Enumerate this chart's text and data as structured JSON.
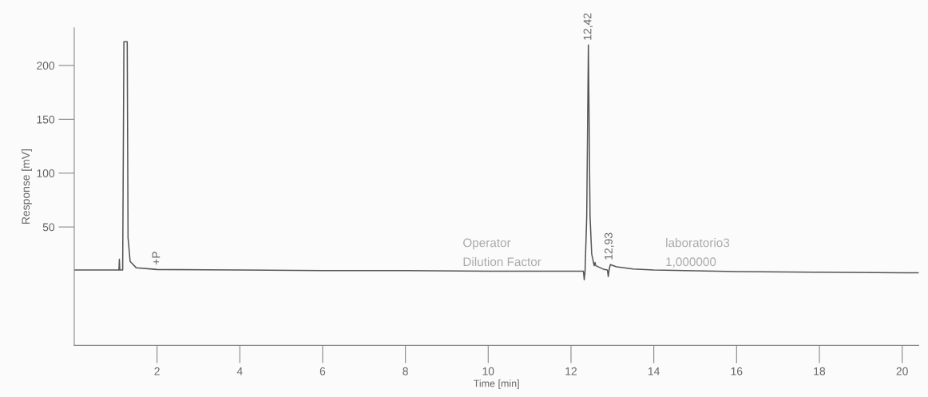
{
  "chart_data": {
    "type": "line",
    "xlabel": "Time [min]",
    "ylabel": "Response [mV]",
    "series": [
      {
        "color": "#555555",
        "x": [
          0,
          1.08,
          1.09,
          1.1,
          1.17,
          1.2,
          1.28,
          1.3,
          1.35,
          1.5,
          2,
          4,
          6,
          8,
          10,
          12,
          12.3,
          12.32,
          12.34,
          12.38,
          12.42,
          12.46,
          12.5,
          12.56,
          12.58,
          12.6,
          12.8,
          12.88,
          12.9,
          12.92,
          12.95,
          13.1,
          13.5,
          14,
          16,
          18,
          20,
          20.4
        ],
        "values": [
          10,
          10,
          20,
          10,
          10,
          222,
          222,
          40,
          18,
          12,
          10.5,
          10,
          9.5,
          9.5,
          9,
          9,
          9,
          1,
          9,
          60,
          219,
          60,
          25,
          14,
          17,
          14,
          10.5,
          10,
          4,
          10,
          15,
          13,
          11,
          10,
          8.5,
          8,
          7.5,
          7.5
        ]
      }
    ],
    "annotations": [
      {
        "text": "12,42",
        "x": 12.42,
        "y": 219
      },
      {
        "text": "12,93",
        "x": 12.93,
        "y": 15
      },
      {
        "text": "+P",
        "x": 2,
        "y": 10.5
      },
      "Operator",
      "Dilution Factor",
      "laboratorio3",
      "1,000000"
    ],
    "xlim": [
      0,
      20.4
    ],
    "ylim": [
      -60,
      235
    ],
    "xticks": [
      2,
      4,
      6,
      8,
      10,
      12,
      14,
      16,
      18,
      20
    ],
    "yticks": [
      50,
      100,
      150,
      200
    ],
    "grid": false,
    "legend": false,
    "marker": "none",
    "line_style": "solid"
  }
}
